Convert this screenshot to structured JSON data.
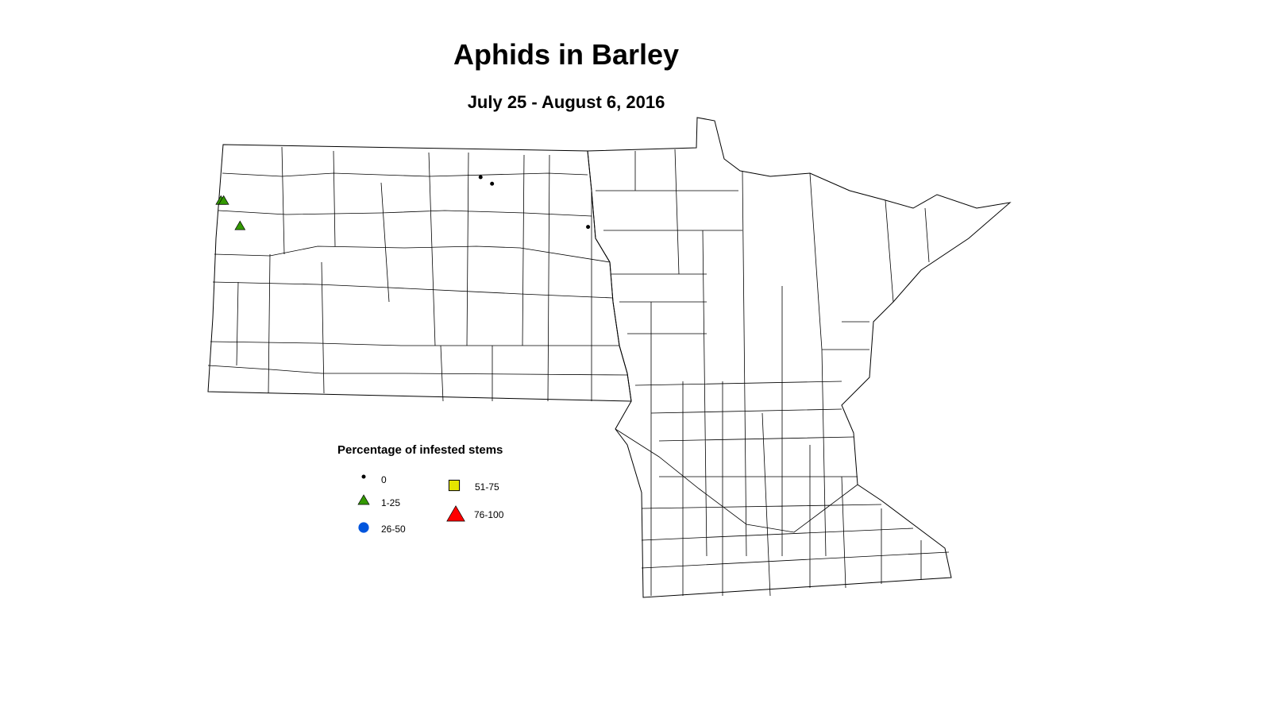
{
  "title": "Aphids in Barley",
  "subtitle": "July 25 - August 6, 2016",
  "legend": {
    "title": "Percentage of infested stems",
    "classes": [
      {
        "label": "0",
        "symbol": "dot",
        "color": "#000000"
      },
      {
        "label": "1-25",
        "symbol": "triangle",
        "color": "#339900"
      },
      {
        "label": "26-50",
        "symbol": "circle",
        "color": "#0055dd"
      },
      {
        "label": "51-75",
        "symbol": "square",
        "color": "#e6e600"
      },
      {
        "label": "76-100",
        "symbol": "triangle",
        "color": "#ff0000"
      }
    ]
  },
  "regions": [
    "North Dakota",
    "Minnesota"
  ],
  "observations": [
    {
      "lon": -103.93,
      "lat": 48.34,
      "class": "1-25"
    },
    {
      "lon": -103.88,
      "lat": 48.34,
      "class": "1-25"
    },
    {
      "lon": -103.58,
      "lat": 48.03,
      "class": "1-25"
    },
    {
      "lon": -99.17,
      "lat": 48.63,
      "class": "0"
    },
    {
      "lon": -98.96,
      "lat": 48.55,
      "class": "0"
    },
    {
      "lon": -97.2,
      "lat": 48.02,
      "class": "0"
    }
  ]
}
